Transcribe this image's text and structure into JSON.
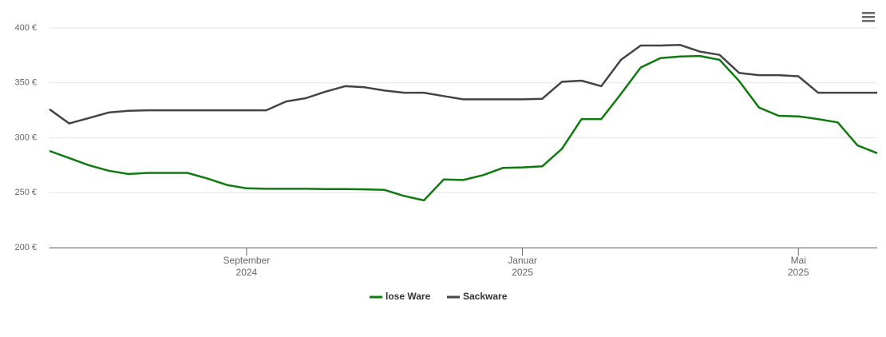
{
  "chart_data": {
    "type": "line",
    "categories": [
      null,
      null,
      null,
      null,
      null,
      null,
      null,
      null,
      null,
      null,
      "September\n2024",
      null,
      null,
      null,
      null,
      null,
      null,
      null,
      null,
      null,
      null,
      null,
      null,
      null,
      "Januar\n2025",
      null,
      null,
      null,
      null,
      null,
      null,
      null,
      null,
      null,
      null,
      null,
      null,
      null,
      "Mai\n2025",
      null,
      null,
      null,
      null
    ],
    "series": [
      {
        "name": "lose Ware",
        "color": "#0f7a0f",
        "values": [
          288,
          281.5,
          275,
          270,
          267,
          268,
          268,
          268,
          263,
          257,
          254,
          253.5,
          253.5,
          253.5,
          253.3,
          253.3,
          253,
          252.5,
          247,
          243,
          262,
          261.5,
          266,
          272.5,
          273,
          274,
          290,
          317,
          317,
          340,
          364,
          372.5,
          374,
          374.5,
          371,
          351.5,
          327.5,
          320,
          319.5,
          317,
          314,
          293,
          286
        ]
      },
      {
        "name": "Sackware",
        "color": "#434348",
        "values": [
          326,
          313,
          318,
          323,
          324.5,
          325,
          325,
          325,
          325,
          325,
          325,
          325,
          333,
          336,
          342,
          347,
          346,
          343,
          341,
          341,
          338,
          335,
          335,
          335,
          335,
          335.5,
          351,
          352,
          347,
          371,
          384,
          384,
          384.5,
          378.5,
          375.5,
          359,
          357,
          357,
          356,
          341,
          341,
          341,
          341
        ]
      }
    ],
    "ylim": [
      200,
      400
    ],
    "yticks": [
      {
        "value": 200,
        "label": "200 €"
      },
      {
        "value": 250,
        "label": "250 €"
      },
      {
        "value": 300,
        "label": "300 €"
      },
      {
        "value": 350,
        "label": "350 €"
      },
      {
        "value": 400,
        "label": "400 €"
      }
    ],
    "grid": true
  }
}
